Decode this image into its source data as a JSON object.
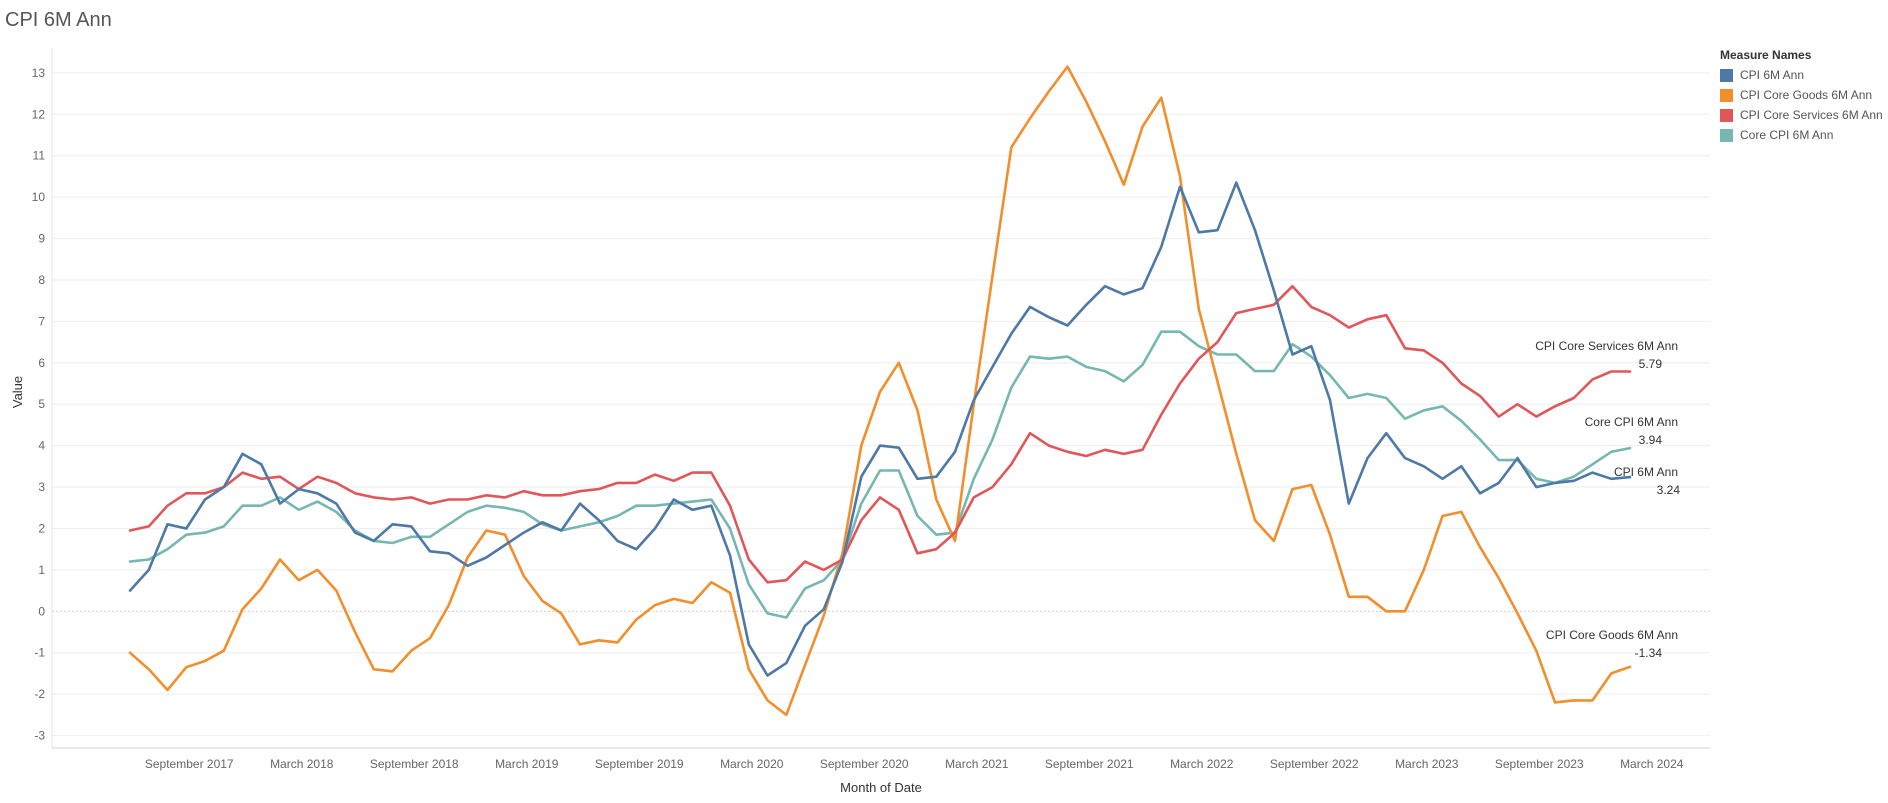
{
  "chart_data": {
    "type": "line",
    "title": "CPI 6M Ann",
    "xlabel": "Month of Date",
    "ylabel": "Value",
    "ylim": [
      -3.3,
      13.6
    ],
    "yticks": [
      -3,
      -2,
      -1,
      0,
      1,
      2,
      3,
      4,
      5,
      6,
      7,
      8,
      9,
      10,
      11,
      12,
      13
    ],
    "x_start": "2017-06",
    "x_labels": [
      "September 2017",
      "March 2018",
      "September 2018",
      "March 2019",
      "September 2019",
      "March 2020",
      "September 2020",
      "March 2021",
      "September 2021",
      "March 2022",
      "September 2022",
      "March 2023",
      "September 2023",
      "March 2024"
    ],
    "grid": true,
    "legend": {
      "title": "Measure Names",
      "position": "top-right"
    },
    "series": [
      {
        "name": "CPI 6M Ann",
        "color": "#4e79a7",
        "end_label": "CPI 6M Ann",
        "end_value": "3.24",
        "values": [
          0.5,
          1.0,
          2.1,
          2.0,
          2.7,
          3.0,
          3.8,
          3.55,
          2.6,
          2.95,
          2.85,
          2.6,
          1.9,
          1.7,
          2.1,
          2.05,
          1.45,
          1.4,
          1.1,
          1.3,
          1.6,
          1.9,
          2.15,
          1.95,
          2.6,
          2.2,
          1.7,
          1.5,
          2.0,
          2.7,
          2.45,
          2.55,
          1.35,
          -0.8,
          -1.55,
          -1.25,
          -0.35,
          0.05,
          1.2,
          3.25,
          4.0,
          3.95,
          3.2,
          3.25,
          3.85,
          5.1,
          5.9,
          6.7,
          7.35,
          7.1,
          6.9,
          7.4,
          7.85,
          7.65,
          7.8,
          8.8,
          10.25,
          9.15,
          9.2,
          10.35,
          9.2,
          7.75,
          6.2,
          6.4,
          5.1,
          2.6,
          3.7,
          4.3,
          3.7,
          3.5,
          3.2,
          3.5,
          2.85,
          3.1,
          3.7,
          3.0,
          3.1,
          3.15,
          3.35,
          3.2,
          3.24
        ]
      },
      {
        "name": "CPI Core Goods 6M Ann",
        "color": "#f28e2b",
        "end_label": "CPI Core Goods 6M Ann",
        "end_value": "-1.34",
        "values": [
          -1.0,
          -1.4,
          -1.9,
          -1.35,
          -1.2,
          -0.95,
          0.05,
          0.55,
          1.25,
          0.75,
          1.0,
          0.5,
          -0.5,
          -1.4,
          -1.45,
          -0.95,
          -0.65,
          0.15,
          1.3,
          1.95,
          1.85,
          0.85,
          0.25,
          -0.05,
          -0.8,
          -0.7,
          -0.75,
          -0.2,
          0.15,
          0.3,
          0.2,
          0.7,
          0.45,
          -1.4,
          -2.15,
          -2.5,
          -1.3,
          -0.1,
          1.4,
          4.0,
          5.3,
          6.0,
          4.85,
          2.7,
          1.7,
          5.0,
          8.1,
          11.2,
          11.9,
          12.55,
          13.15,
          12.3,
          11.35,
          10.3,
          11.7,
          12.4,
          10.5,
          7.3,
          5.55,
          3.8,
          2.2,
          1.7,
          2.95,
          3.05,
          1.85,
          0.35,
          0.35,
          0.0,
          0.0,
          1.0,
          2.3,
          2.4,
          1.55,
          0.8,
          -0.05,
          -0.95,
          -2.2,
          -2.15,
          -2.15,
          -1.5,
          -1.34
        ]
      },
      {
        "name": "CPI Core Services 6M Ann",
        "color": "#e15759",
        "end_label": "CPI Core Services 6M Ann",
        "end_value": "5.79",
        "values": [
          1.95,
          2.05,
          2.55,
          2.85,
          2.85,
          3.0,
          3.35,
          3.2,
          3.25,
          2.95,
          3.25,
          3.1,
          2.85,
          2.75,
          2.7,
          2.75,
          2.6,
          2.7,
          2.7,
          2.8,
          2.75,
          2.9,
          2.8,
          2.8,
          2.9,
          2.95,
          3.1,
          3.1,
          3.3,
          3.15,
          3.35,
          3.35,
          2.55,
          1.25,
          0.7,
          0.75,
          1.2,
          1.0,
          1.25,
          2.2,
          2.75,
          2.45,
          1.4,
          1.5,
          1.9,
          2.75,
          3.0,
          3.55,
          4.3,
          4.0,
          3.85,
          3.75,
          3.9,
          3.8,
          3.9,
          4.75,
          5.5,
          6.1,
          6.5,
          7.2,
          7.3,
          7.4,
          7.85,
          7.35,
          7.15,
          6.85,
          7.05,
          7.15,
          6.35,
          6.3,
          6.0,
          5.5,
          5.2,
          4.7,
          5.0,
          4.7,
          4.95,
          5.15,
          5.6,
          5.79,
          5.79
        ]
      },
      {
        "name": "Core CPI 6M Ann",
        "color": "#76b7b2",
        "end_label": "Core CPI 6M Ann",
        "end_value": "3.94",
        "values": [
          1.2,
          1.25,
          1.5,
          1.85,
          1.9,
          2.05,
          2.55,
          2.55,
          2.75,
          2.45,
          2.65,
          2.4,
          1.95,
          1.7,
          1.65,
          1.8,
          1.8,
          2.1,
          2.4,
          2.55,
          2.5,
          2.4,
          2.1,
          1.95,
          2.05,
          2.15,
          2.3,
          2.55,
          2.55,
          2.6,
          2.65,
          2.7,
          2.0,
          0.65,
          -0.05,
          -0.15,
          0.55,
          0.75,
          1.25,
          2.6,
          3.4,
          3.4,
          2.3,
          1.85,
          1.9,
          3.2,
          4.15,
          5.4,
          6.15,
          6.1,
          6.15,
          5.9,
          5.8,
          5.55,
          5.95,
          6.75,
          6.75,
          6.4,
          6.2,
          6.2,
          5.8,
          5.8,
          6.45,
          6.15,
          5.7,
          5.15,
          5.25,
          5.15,
          4.65,
          4.85,
          4.95,
          4.6,
          4.15,
          3.65,
          3.65,
          3.2,
          3.1,
          3.25,
          3.55,
          3.85,
          3.94
        ]
      }
    ]
  }
}
